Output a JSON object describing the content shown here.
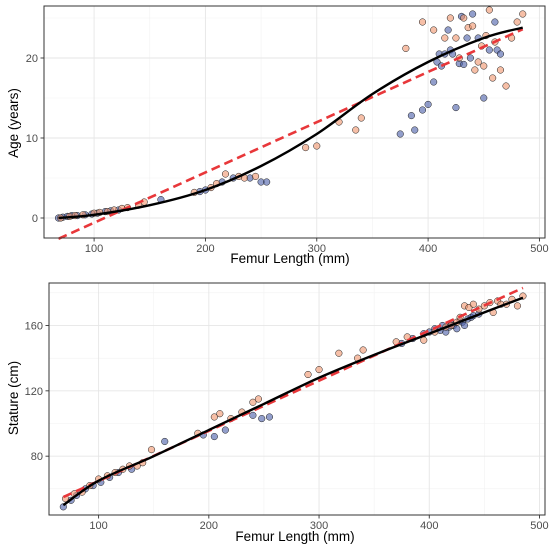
{
  "colors": {
    "group_a": "#4a5ea8",
    "group_b": "#f0956c",
    "smooth": "#000000",
    "linear": "#e8373a"
  },
  "chart_data": [
    {
      "type": "scatter",
      "title": "",
      "xlabel": "Femur Length (mm)",
      "ylabel": "Age (years)",
      "xlim": [
        55,
        505
      ],
      "ylim": [
        -2.5,
        26.5
      ],
      "xticks": [
        100,
        200,
        300,
        400,
        500
      ],
      "yticks": [
        0,
        10,
        20
      ],
      "grid": true,
      "legend": "none",
      "series": [
        {
          "group": "a",
          "x": [
            68,
            72,
            76,
            80,
            85,
            92,
            98,
            103,
            110,
            115,
            122,
            160,
            195,
            200,
            215,
            225,
            240,
            250,
            255,
            375,
            385,
            388,
            395,
            400,
            405,
            408,
            410,
            412,
            415,
            418,
            420,
            422,
            425,
            428,
            430,
            432,
            435,
            438,
            440,
            445,
            450,
            455,
            460,
            462,
            465
          ],
          "y": [
            0,
            0.1,
            0.2,
            0.3,
            0.3,
            0.4,
            0.5,
            0.6,
            0.8,
            0.9,
            1.0,
            2.3,
            3.3,
            3.5,
            4.5,
            5.0,
            5.0,
            4.5,
            4.5,
            10.5,
            12.8,
            11.0,
            13.5,
            14.2,
            17.0,
            19.5,
            20.5,
            19.0,
            20.5,
            23.5,
            21.0,
            20.5,
            13.8,
            19.3,
            25.2,
            19.2,
            22.5,
            20.0,
            25.5,
            22.5,
            15.0,
            21.0,
            24.5,
            21.0,
            20.5
          ]
        },
        {
          "group": "b",
          "x": [
            70,
            78,
            83,
            90,
            100,
            105,
            112,
            118,
            125,
            130,
            140,
            145,
            190,
            205,
            210,
            218,
            230,
            235,
            245,
            290,
            300,
            320,
            335,
            340,
            380,
            395,
            405,
            415,
            420,
            425,
            428,
            432,
            436,
            440,
            442,
            445,
            448,
            450,
            452,
            455,
            458,
            460,
            465,
            470,
            475,
            480,
            485
          ],
          "y": [
            0,
            0.2,
            0.3,
            0.4,
            0.6,
            0.7,
            0.8,
            1.0,
            1.2,
            1.3,
            1.6,
            2.0,
            3.2,
            3.8,
            4.3,
            5.5,
            5.2,
            5.0,
            5.2,
            8.8,
            9.0,
            12.0,
            11.0,
            12.5,
            21.2,
            24.5,
            23.5,
            22.5,
            25.0,
            22.5,
            20.0,
            25.0,
            23.8,
            24.0,
            18.5,
            19.5,
            21.5,
            19.0,
            22.8,
            26.0,
            17.5,
            22.0,
            18.5,
            16.5,
            22.5,
            24.5,
            25.5
          ]
        }
      ],
      "smooth_fit": {
        "x": [
          68,
          100,
          150,
          200,
          250,
          300,
          350,
          400,
          450,
          485
        ],
        "y": [
          0,
          0.4,
          1.6,
          3.5,
          6.5,
          10.5,
          15.5,
          19.5,
          22.5,
          23.8
        ]
      },
      "linear_fit": {
        "x": [
          68,
          485
        ],
        "y": [
          -2.6,
          23.6
        ]
      }
    },
    {
      "type": "scatter",
      "title": "",
      "xlabel": "Femur Length (mm)",
      "ylabel": "Stature (cm)",
      "xlim": [
        55,
        505
      ],
      "ylim": [
        44,
        186
      ],
      "xticks": [
        100,
        200,
        300,
        400,
        500
      ],
      "yticks": [
        80,
        120,
        160
      ],
      "grid": true,
      "legend": "none",
      "series": [
        {
          "group": "a",
          "x": [
            68,
            75,
            80,
            88,
            95,
            102,
            110,
            118,
            130,
            160,
            195,
            205,
            215,
            240,
            248,
            255,
            375,
            385,
            395,
            400,
            405,
            410,
            412,
            415,
            418,
            420,
            422,
            425,
            428,
            430,
            432,
            435,
            438,
            440,
            445
          ],
          "y": [
            49,
            53,
            56,
            60,
            62,
            64,
            67,
            70,
            72,
            89,
            93,
            92,
            96,
            105,
            103,
            104,
            149,
            152,
            155,
            156,
            158,
            157,
            160,
            156,
            159,
            161,
            160,
            158,
            163,
            162,
            160,
            164,
            165,
            166,
            167
          ]
        },
        {
          "group": "b",
          "x": [
            70,
            78,
            85,
            92,
            100,
            108,
            115,
            122,
            128,
            135,
            140,
            148,
            190,
            205,
            210,
            220,
            230,
            240,
            245,
            290,
            300,
            318,
            335,
            340,
            370,
            380,
            395,
            405,
            415,
            420,
            425,
            428,
            432,
            436,
            440,
            445,
            450,
            455,
            458,
            462,
            465,
            470,
            475,
            480,
            485
          ],
          "y": [
            54,
            57,
            58,
            62,
            66,
            68,
            70,
            72,
            74,
            74,
            76,
            84,
            94,
            104,
            106,
            103,
            107,
            113,
            115,
            130,
            133,
            143,
            140,
            145,
            150,
            153,
            151,
            156,
            159,
            160,
            162,
            165,
            172,
            171,
            173,
            170,
            172,
            174,
            168,
            175,
            173,
            173,
            176,
            172,
            178
          ]
        }
      ],
      "smooth_fit": {
        "x": [
          68,
          100,
          150,
          200,
          250,
          300,
          350,
          400,
          450,
          485
        ],
        "y": [
          50,
          65,
          80,
          96,
          112,
          128,
          142,
          155,
          168,
          177
        ]
      },
      "linear_fit": {
        "x": [
          68,
          485
        ],
        "y": [
          55,
          183
        ]
      }
    }
  ]
}
